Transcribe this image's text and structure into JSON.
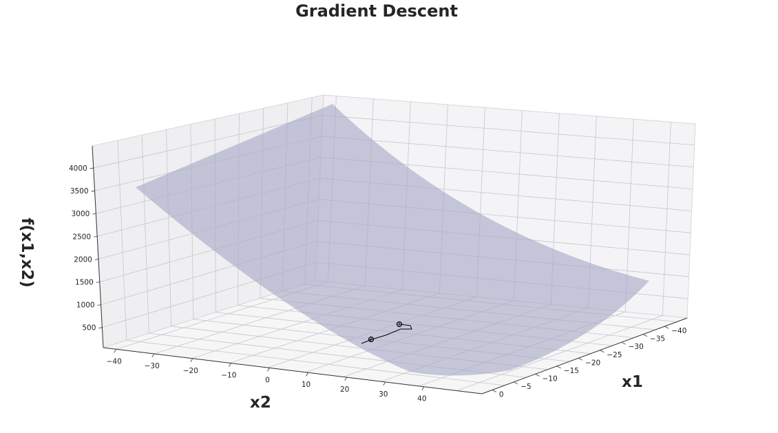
{
  "chart_data": {
    "type": "surface",
    "title": "Gradient Descent",
    "xlabel": "x1",
    "ylabel": "x2",
    "zlabel": "f(x1,x2)",
    "x1_ticks": [
      "0",
      "−5",
      "−10",
      "−15",
      "−20",
      "−25",
      "−30",
      "−35",
      "−40"
    ],
    "x2_ticks": [
      "−40",
      "−30",
      "−20",
      "−10",
      "0",
      "10",
      "20",
      "30",
      "40"
    ],
    "z_ticks": [
      "500",
      "1000",
      "1500",
      "2000",
      "2500",
      "3000",
      "3500",
      "4000"
    ],
    "surface_color": "#a8a8c6",
    "path_color": "#000000",
    "grid": true,
    "descent_path": {
      "start": {
        "x1": -4,
        "x2": 24
      },
      "end": {
        "x1": -10,
        "x2": 22
      },
      "markers": 2
    }
  }
}
